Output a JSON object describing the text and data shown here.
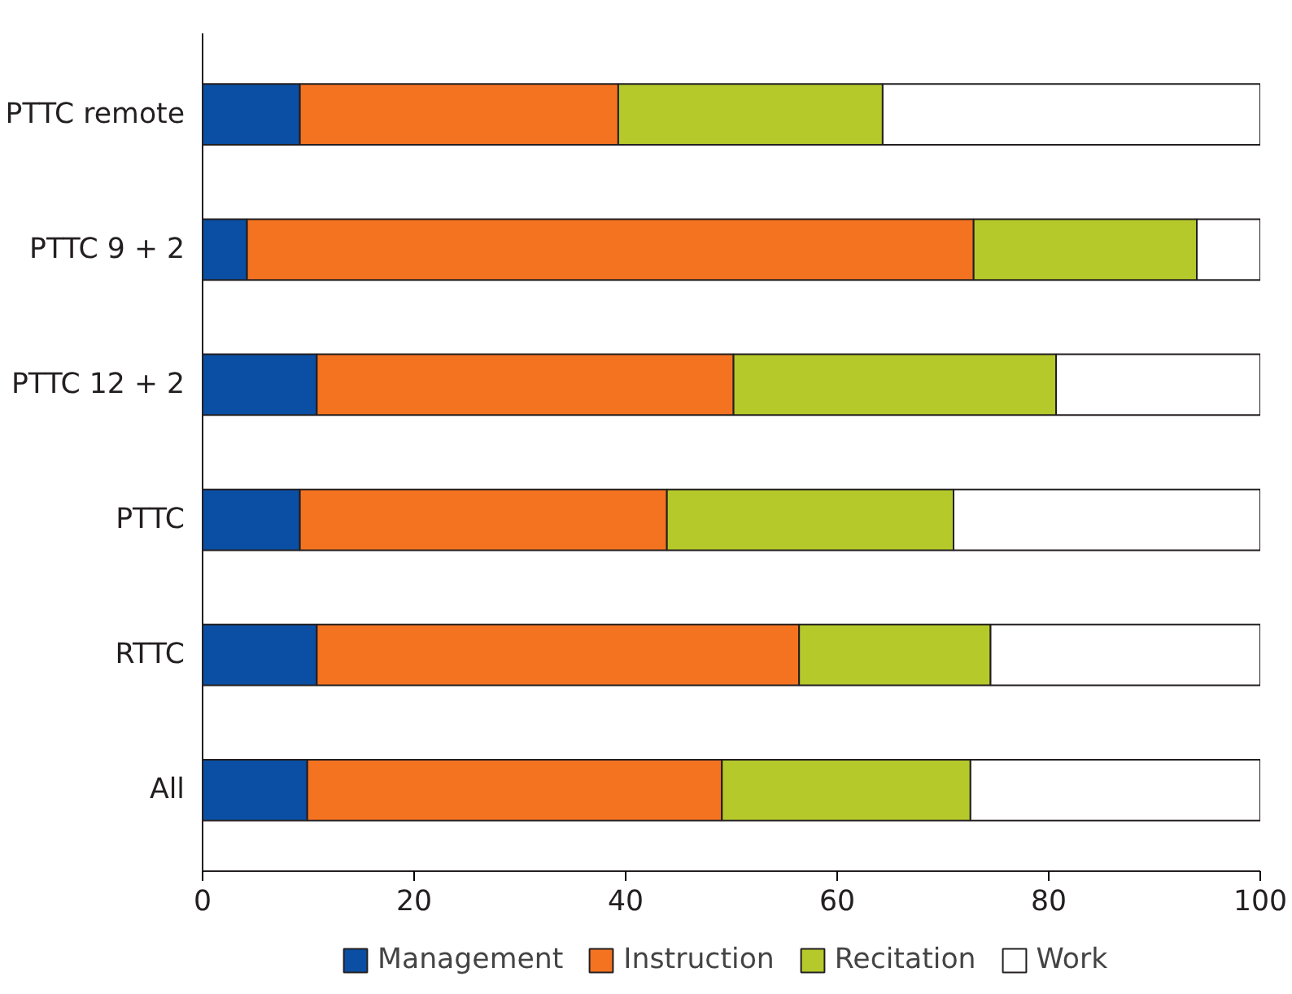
{
  "chart_data": {
    "type": "bar",
    "orientation": "horizontal",
    "stacked": true,
    "categories": [
      "PTTC remote",
      "PTTC 9 + 2",
      "PTTC 12 + 2",
      "PTTC",
      "RTTC",
      "All"
    ],
    "series": [
      {
        "name": "Management",
        "color": "#0a4fa3",
        "values": [
          9.2,
          4.2,
          10.8,
          9.2,
          10.8,
          9.9
        ]
      },
      {
        "name": "Instruction",
        "color": "#f47321",
        "values": [
          30.1,
          68.7,
          39.4,
          34.7,
          45.6,
          39.2
        ]
      },
      {
        "name": "Recitation",
        "color": "#b5c92b",
        "values": [
          25.0,
          21.1,
          30.5,
          27.1,
          18.1,
          23.5
        ]
      },
      {
        "name": "Work",
        "color": "#ffffff",
        "values": [
          35.7,
          6.0,
          19.3,
          29.0,
          25.5,
          27.4
        ]
      }
    ],
    "xlim": [
      0,
      100
    ],
    "xticks": [
      0,
      20,
      40,
      60,
      80,
      100
    ],
    "grid": false,
    "legend": "bottom"
  }
}
